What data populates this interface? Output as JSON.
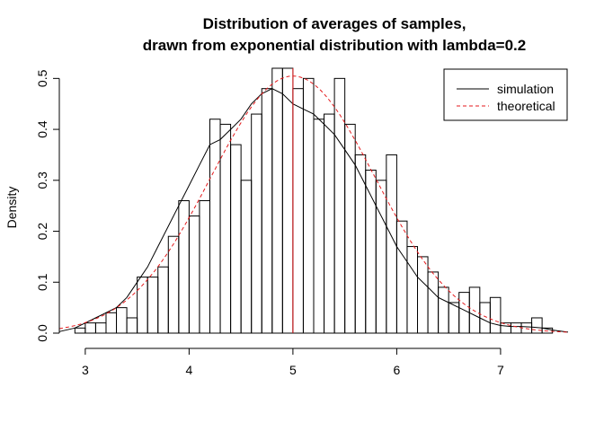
{
  "chart_data": {
    "type": "histogram",
    "title_line1": "Distribution of averages of samples,",
    "title_line2": "drawn from exponential distribution with lambda=0.2",
    "xlabel": "",
    "ylabel": "Density",
    "xlim": [
      2.75,
      7.65
    ],
    "ylim": [
      0,
      0.52
    ],
    "x_ticks": [
      3,
      4,
      5,
      6,
      7
    ],
    "x_tick_labels": [
      "3",
      "4",
      "5",
      "6",
      "7"
    ],
    "y_ticks": [
      0.0,
      0.1,
      0.2,
      0.3,
      0.4,
      0.5
    ],
    "y_tick_labels": [
      "0.0",
      "0.1",
      "0.2",
      "0.3",
      "0.4",
      "0.5"
    ],
    "grid": false,
    "bin_width": 0.1,
    "histogram": {
      "bin_start": 2.9,
      "densities": [
        0.01,
        0.02,
        0.02,
        0.04,
        0.05,
        0.03,
        0.11,
        0.11,
        0.13,
        0.19,
        0.26,
        0.23,
        0.26,
        0.42,
        0.41,
        0.37,
        0.3,
        0.43,
        0.48,
        0.52,
        0.52,
        0.48,
        0.5,
        0.42,
        0.43,
        0.5,
        0.41,
        0.35,
        0.32,
        0.3,
        0.35,
        0.22,
        0.17,
        0.15,
        0.12,
        0.09,
        0.06,
        0.08,
        0.09,
        0.06,
        0.07,
        0.02,
        0.02,
        0.02,
        0.03,
        0.01
      ]
    },
    "series": [
      {
        "name": "simulation",
        "color": "#000000",
        "dash": "solid",
        "x": [
          2.75,
          2.9,
          3.0,
          3.1,
          3.2,
          3.3,
          3.4,
          3.5,
          3.6,
          3.7,
          3.8,
          3.9,
          4.0,
          4.1,
          4.2,
          4.3,
          4.4,
          4.5,
          4.6,
          4.7,
          4.8,
          4.9,
          5.0,
          5.1,
          5.2,
          5.3,
          5.4,
          5.5,
          5.6,
          5.7,
          5.8,
          5.9,
          6.0,
          6.1,
          6.2,
          6.3,
          6.4,
          6.5,
          6.6,
          6.7,
          6.8,
          6.9,
          7.0,
          7.1,
          7.2,
          7.3,
          7.4,
          7.5,
          7.65
        ],
        "y": [
          0.003,
          0.01,
          0.02,
          0.03,
          0.04,
          0.05,
          0.07,
          0.1,
          0.13,
          0.17,
          0.21,
          0.25,
          0.29,
          0.33,
          0.37,
          0.38,
          0.4,
          0.42,
          0.45,
          0.47,
          0.48,
          0.47,
          0.45,
          0.44,
          0.43,
          0.41,
          0.39,
          0.36,
          0.33,
          0.29,
          0.25,
          0.21,
          0.17,
          0.14,
          0.11,
          0.09,
          0.07,
          0.06,
          0.05,
          0.04,
          0.03,
          0.02,
          0.015,
          0.013,
          0.013,
          0.012,
          0.01,
          0.006,
          0.002
        ]
      },
      {
        "name": "theoretical",
        "color": "#e41a1c",
        "dash": "dashed",
        "mean": 5,
        "sd": 0.7906
      }
    ],
    "vline": {
      "x": 5,
      "color": "#e41a1c"
    },
    "legend": {
      "position": "top-right",
      "items": [
        {
          "label": "simulation",
          "color": "#000000",
          "dash": "solid"
        },
        {
          "label": "theoretical",
          "color": "#e41a1c",
          "dash": "dashed"
        }
      ]
    }
  }
}
